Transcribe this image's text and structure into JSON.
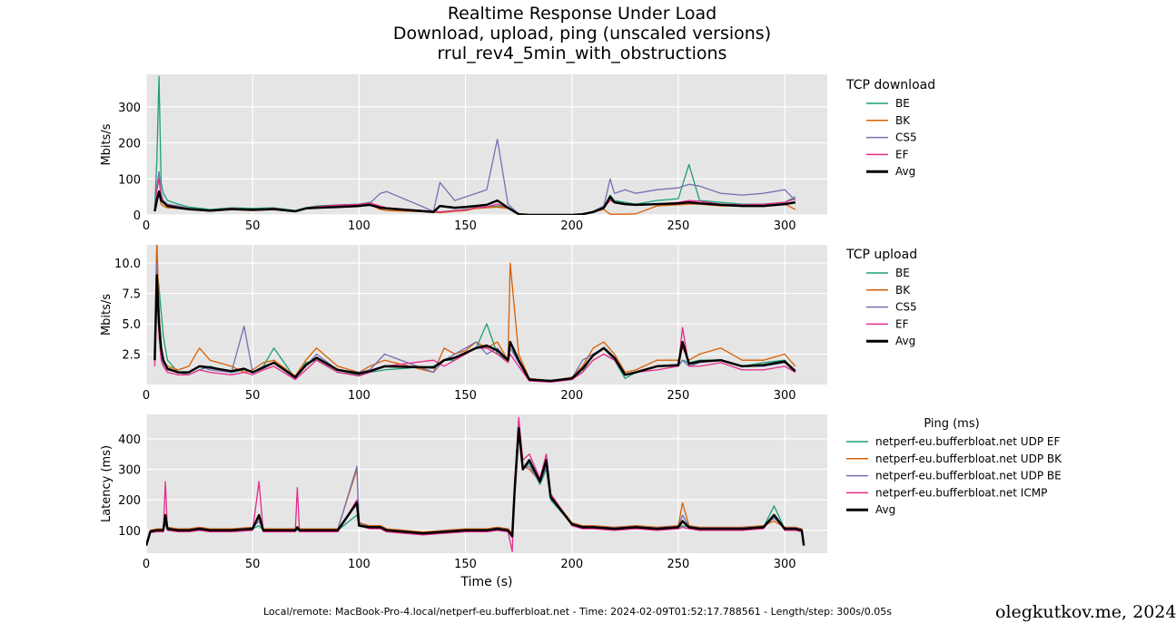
{
  "title": {
    "line1": "Realtime Response Under Load",
    "line2": "Download, upload, ping (unscaled versions)",
    "line3": "rrul_rev4_5min_with_obstructions"
  },
  "footer": "Local/remote: MacBook-Pro-4.local/netperf-eu.bufferbloat.net - Time: 2024-02-09T01:52:17.788561 - Length/step: 300s/0.05s",
  "credit": "olegkutkov.me, 2024",
  "colors": {
    "BE": "#1b9e77",
    "BK": "#d95f02",
    "CS5": "#7570b3",
    "EF": "#e7298a",
    "Avg": "#000000",
    "panel_bg": "#e5e5e5",
    "grid": "#ffffff"
  },
  "chart_data": [
    {
      "type": "line",
      "id": "download",
      "ylabel": "Mbits/s",
      "xlim": [
        0,
        320
      ],
      "ylim": [
        0,
        390
      ],
      "xticks": [
        0,
        50,
        100,
        150,
        200,
        250,
        300
      ],
      "yticks": [
        0,
        100,
        200,
        300
      ],
      "grid": true,
      "legend": {
        "title": "TCP download",
        "placement": "right"
      },
      "x": [
        4,
        5,
        6,
        7,
        8,
        10,
        15,
        20,
        30,
        40,
        50,
        60,
        70,
        75,
        80,
        90,
        100,
        105,
        110,
        113,
        135,
        138,
        145,
        150,
        155,
        160,
        165,
        170,
        175,
        180,
        190,
        200,
        205,
        210,
        215,
        218,
        220,
        225,
        230,
        240,
        250,
        255,
        260,
        270,
        280,
        290,
        300,
        305
      ],
      "series": [
        {
          "name": "BE",
          "color_key": "BE",
          "values": [
            20,
            150,
            385,
            90,
            60,
            40,
            30,
            22,
            15,
            20,
            18,
            20,
            12,
            20,
            25,
            28,
            30,
            35,
            20,
            18,
            10,
            8,
            12,
            15,
            20,
            22,
            25,
            20,
            2,
            0,
            0,
            0,
            2,
            10,
            20,
            55,
            40,
            35,
            30,
            40,
            45,
            140,
            40,
            35,
            30,
            30,
            35,
            50
          ]
        },
        {
          "name": "BK",
          "color_key": "BK",
          "values": [
            10,
            40,
            60,
            30,
            25,
            20,
            18,
            15,
            10,
            15,
            12,
            15,
            10,
            18,
            22,
            25,
            28,
            30,
            15,
            12,
            8,
            6,
            10,
            12,
            18,
            20,
            22,
            18,
            2,
            0,
            0,
            0,
            2,
            8,
            15,
            2,
            2,
            2,
            3,
            25,
            28,
            30,
            30,
            25,
            25,
            25,
            30,
            15
          ]
        },
        {
          "name": "CS5",
          "color_key": "CS5",
          "values": [
            15,
            80,
            120,
            60,
            40,
            30,
            25,
            18,
            12,
            18,
            15,
            18,
            10,
            18,
            22,
            26,
            30,
            32,
            60,
            65,
            10,
            90,
            40,
            50,
            60,
            70,
            210,
            30,
            2,
            0,
            0,
            0,
            2,
            10,
            25,
            100,
            60,
            70,
            60,
            70,
            75,
            85,
            80,
            60,
            55,
            60,
            70,
            40
          ]
        },
        {
          "name": "EF",
          "color_key": "EF",
          "values": [
            18,
            70,
            100,
            50,
            35,
            28,
            22,
            17,
            12,
            18,
            14,
            18,
            11,
            19,
            23,
            27,
            29,
            33,
            25,
            20,
            10,
            8,
            12,
            14,
            20,
            22,
            30,
            20,
            2,
            0,
            0,
            0,
            2,
            9,
            20,
            40,
            35,
            30,
            28,
            30,
            35,
            40,
            38,
            30,
            28,
            30,
            35,
            45
          ]
        },
        {
          "name": "Avg",
          "color_key": "Avg",
          "values": [
            10,
            40,
            65,
            40,
            35,
            25,
            20,
            16,
            12,
            16,
            14,
            16,
            10,
            18,
            20,
            22,
            25,
            28,
            20,
            18,
            8,
            25,
            20,
            22,
            25,
            28,
            40,
            20,
            2,
            0,
            0,
            0,
            2,
            8,
            20,
            50,
            35,
            30,
            28,
            30,
            32,
            35,
            32,
            28,
            25,
            25,
            30,
            35
          ]
        }
      ]
    },
    {
      "type": "line",
      "id": "upload",
      "ylabel": "Mbits/s",
      "xlim": [
        0,
        320
      ],
      "ylim": [
        0,
        11.5
      ],
      "xticks": [
        0,
        50,
        100,
        150,
        200,
        250,
        300
      ],
      "yticks": [
        2.5,
        5.0,
        7.5,
        10.0
      ],
      "ytick_labels": [
        "2.5",
        "5.0",
        "7.5",
        "10.0"
      ],
      "grid": true,
      "legend": {
        "title": "TCP upload",
        "placement": "right"
      },
      "x": [
        4,
        5,
        6,
        7,
        8,
        10,
        15,
        20,
        25,
        30,
        40,
        46,
        50,
        55,
        60,
        70,
        75,
        80,
        90,
        100,
        105,
        112,
        135,
        140,
        145,
        150,
        155,
        160,
        165,
        170,
        171,
        175,
        180,
        190,
        200,
        205,
        210,
        215,
        220,
        225,
        230,
        240,
        250,
        252,
        255,
        260,
        270,
        280,
        290,
        300,
        305
      ],
      "series": [
        {
          "name": "BE",
          "color_key": "BE",
          "values": [
            2,
            9.5,
            8,
            6,
            4,
            2,
            1,
            0.8,
            1.2,
            1.5,
            1,
            1.2,
            1,
            1.5,
            3,
            0.5,
            1.8,
            2,
            1,
            0.8,
            1,
            1.2,
            1.5,
            2,
            2,
            2.5,
            3,
            5,
            2.5,
            2,
            3,
            2,
            0.5,
            0.3,
            0.5,
            1,
            2.5,
            3,
            2,
            0.5,
            1,
            1.5,
            1.5,
            2,
            1.8,
            2,
            2,
            1.5,
            1.8,
            2,
            1
          ]
        },
        {
          "name": "BK",
          "color_key": "BK",
          "values": [
            3,
            12,
            6,
            3,
            2,
            1.5,
            1.2,
            1.5,
            3,
            2,
            1.5,
            1,
            1.2,
            1.8,
            2,
            0.7,
            2,
            3,
            1.5,
            1,
            1.5,
            2,
            1,
            3,
            2.5,
            2.8,
            3.5,
            3,
            3.5,
            2,
            10,
            2.5,
            0.5,
            0.3,
            0.6,
            1.5,
            3,
            3.5,
            2.5,
            1,
            1.2,
            2,
            2,
            3,
            2,
            2.5,
            3,
            2,
            2,
            2.5,
            1.5
          ]
        },
        {
          "name": "CS5",
          "color_key": "CS5",
          "values": [
            2,
            10,
            5,
            2.5,
            1.8,
            1.2,
            1,
            1,
            1.5,
            1.2,
            1,
            4.8,
            1,
            1.5,
            1.8,
            0.5,
            1.5,
            2.5,
            1.2,
            1,
            1.2,
            2.5,
            1,
            2,
            2.5,
            3,
            3.5,
            2.5,
            3,
            2,
            3,
            1.8,
            0.4,
            0.2,
            0.5,
            2,
            2.5,
            3,
            2,
            0.8,
            1,
            1.5,
            1.5,
            2,
            1.5,
            1.8,
            2,
            1.5,
            1.5,
            1.8,
            1
          ]
        },
        {
          "name": "EF",
          "color_key": "EF",
          "values": [
            1.5,
            8,
            4,
            2,
            1.5,
            1,
            0.8,
            0.8,
            1.2,
            1,
            0.8,
            1,
            0.8,
            1.2,
            1.5,
            0.4,
            1.2,
            2,
            1,
            0.7,
            1,
            1.5,
            2,
            1.5,
            2,
            2.5,
            3,
            3,
            2.5,
            1.8,
            2.5,
            1.5,
            0.3,
            0.2,
            0.4,
            1,
            2,
            2.5,
            2,
            0.8,
            1,
            1.2,
            1.5,
            4.7,
            1.5,
            1.5,
            1.8,
            1.2,
            1.2,
            1.5,
            1
          ]
        },
        {
          "name": "Avg",
          "color_key": "Avg",
          "values": [
            2,
            9,
            5,
            3,
            2,
            1.3,
            1,
            1,
            1.5,
            1.4,
            1.1,
            1.3,
            1,
            1.4,
            1.8,
            0.6,
            1.6,
            2.2,
            1.2,
            0.9,
            1.1,
            1.5,
            1.4,
            2,
            2.2,
            2.6,
            3,
            3.2,
            2.8,
            2,
            3.5,
            2,
            0.4,
            0.3,
            0.5,
            1.3,
            2.4,
            3,
            2.2,
            0.8,
            1,
            1.5,
            1.6,
            3.5,
            1.7,
            1.9,
            2,
            1.5,
            1.6,
            1.9,
            1.1
          ]
        }
      ]
    },
    {
      "type": "line",
      "id": "ping",
      "ylabel": "Latency (ms)",
      "xlabel": "Time (s)",
      "xlim": [
        0,
        320
      ],
      "ylim": [
        25,
        480
      ],
      "xticks": [
        0,
        50,
        100,
        150,
        200,
        250,
        300
      ],
      "yticks": [
        100,
        200,
        300,
        400
      ],
      "grid": true,
      "legend": {
        "title": "Ping (ms)",
        "placement": "right"
      },
      "x": [
        0,
        2,
        5,
        8,
        9,
        10,
        15,
        20,
        25,
        30,
        40,
        50,
        53,
        55,
        60,
        70,
        71,
        72,
        80,
        90,
        99,
        100,
        105,
        110,
        113,
        130,
        140,
        150,
        160,
        165,
        170,
        172,
        173,
        175,
        177,
        180,
        185,
        188,
        190,
        195,
        200,
        205,
        210,
        220,
        230,
        240,
        250,
        252,
        255,
        260,
        270,
        280,
        290,
        295,
        300,
        305,
        308,
        309
      ],
      "series": [
        {
          "name": "netperf-eu.bufferbloat.net UDP EF",
          "color_key": "BE",
          "values": [
            50,
            95,
            100,
            100,
            120,
            105,
            100,
            100,
            105,
            100,
            100,
            105,
            115,
            100,
            100,
            100,
            100,
            100,
            100,
            100,
            150,
            120,
            110,
            110,
            100,
            90,
            95,
            100,
            100,
            105,
            100,
            80,
            200,
            430,
            300,
            320,
            250,
            300,
            200,
            160,
            120,
            110,
            110,
            105,
            110,
            105,
            110,
            115,
            110,
            105,
            105,
            105,
            110,
            180,
            105,
            105,
            100,
            50
          ]
        },
        {
          "name": "netperf-eu.bufferbloat.net UDP BK",
          "color_key": "BK",
          "values": [
            50,
            100,
            105,
            105,
            130,
            110,
            105,
            105,
            110,
            105,
            105,
            110,
            140,
            105,
            105,
            105,
            105,
            105,
            105,
            105,
            300,
            125,
            115,
            115,
            105,
            95,
            100,
            105,
            105,
            110,
            105,
            90,
            220,
            430,
            310,
            300,
            260,
            320,
            210,
            170,
            125,
            115,
            115,
            110,
            115,
            110,
            115,
            190,
            115,
            110,
            110,
            110,
            115,
            130,
            110,
            110,
            105,
            50
          ]
        },
        {
          "name": "netperf-eu.bufferbloat.net UDP BE",
          "color_key": "CS5",
          "values": [
            50,
            98,
            102,
            102,
            125,
            108,
            102,
            102,
            108,
            102,
            102,
            108,
            130,
            102,
            102,
            102,
            102,
            102,
            102,
            102,
            310,
            122,
            112,
            112,
            102,
            92,
            98,
            102,
            102,
            108,
            102,
            85,
            210,
            420,
            305,
            310,
            255,
            310,
            205,
            165,
            122,
            112,
            112,
            108,
            112,
            108,
            112,
            150,
            112,
            108,
            108,
            108,
            112,
            140,
            108,
            108,
            102,
            50
          ]
        },
        {
          "name": "netperf-eu.bufferbloat.net ICMP",
          "color_key": "EF",
          "values": [
            50,
            92,
            95,
            95,
            260,
            100,
            95,
            95,
            100,
            95,
            95,
            100,
            260,
            95,
            95,
            95,
            240,
            95,
            95,
            95,
            200,
            115,
            105,
            105,
            95,
            85,
            90,
            95,
            95,
            100,
            95,
            30,
            250,
            470,
            330,
            350,
            270,
            350,
            220,
            170,
            115,
            105,
            105,
            100,
            105,
            100,
            105,
            110,
            105,
            100,
            100,
            100,
            105,
            150,
            100,
            100,
            95,
            50
          ]
        },
        {
          "name": "Avg",
          "color_key": "Avg",
          "values": [
            50,
            97,
            100,
            100,
            150,
            105,
            100,
            100,
            105,
            100,
            100,
            105,
            150,
            100,
            100,
            100,
            110,
            100,
            100,
            100,
            190,
            115,
            110,
            110,
            100,
            90,
            95,
            100,
            100,
            105,
            100,
            80,
            220,
            435,
            300,
            330,
            260,
            330,
            210,
            165,
            120,
            110,
            110,
            105,
            110,
            105,
            110,
            130,
            110,
            105,
            105,
            105,
            110,
            150,
            105,
            105,
            100,
            50
          ]
        }
      ]
    }
  ]
}
